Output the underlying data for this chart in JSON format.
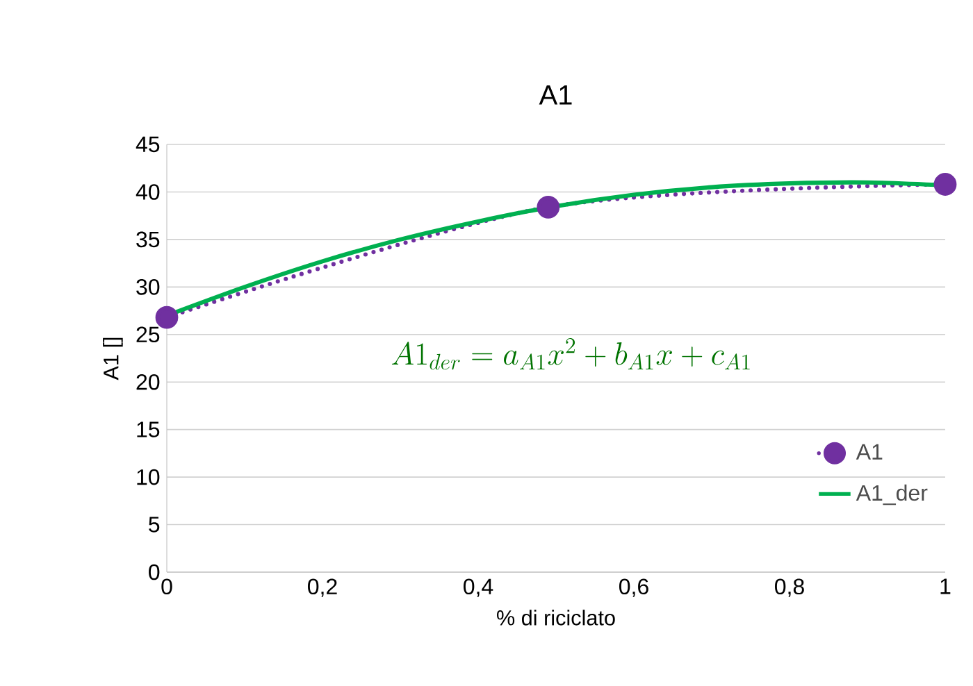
{
  "chart_data": {
    "type": "line",
    "title": "A1",
    "xlabel": "% di riciclato",
    "ylabel": "A1 []",
    "series": [
      {
        "name": "A1",
        "color": "#7030a0",
        "x": [
          0,
          0.49,
          1
        ],
        "values": [
          26.8,
          38.4,
          40.8
        ],
        "marker": "circle",
        "line_style": "dotted"
      },
      {
        "name": "A1_der",
        "color": "#00b050",
        "x": [
          0,
          0.1,
          0.2,
          0.3,
          0.4,
          0.5,
          0.6,
          0.7,
          0.8,
          0.9,
          1
        ],
        "values": [
          27.0,
          30.0,
          32.7,
          35.0,
          36.9,
          38.5,
          39.7,
          40.5,
          40.9,
          41.0,
          40.7
        ],
        "marker": "none",
        "line_style": "solid"
      }
    ],
    "annotations": [
      "A1_{der} = a_{A1}x^2 + b_{A1}x + c_{A1}"
    ],
    "xlim": [
      0,
      1
    ],
    "xticks": [
      0,
      {
        "value": 0.2,
        "label": "0,2"
      },
      {
        "value": 0.4,
        "label": "0,4"
      },
      {
        "value": 0.6,
        "label": "0,6"
      },
      {
        "value": 0.8,
        "label": "0,8"
      },
      1
    ],
    "ylim": [
      0,
      45
    ],
    "yticks": [
      0,
      5,
      10,
      15,
      20,
      25,
      30,
      35,
      40,
      45
    ],
    "grid": "y",
    "legend": "right"
  }
}
